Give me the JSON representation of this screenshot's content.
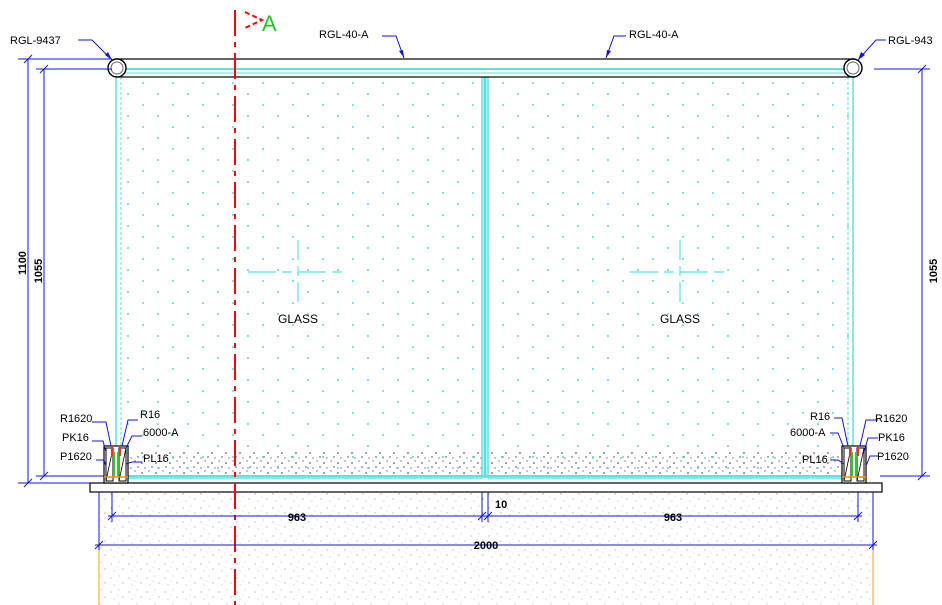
{
  "section_marker": {
    "letter": "A",
    "color_arrow": "#ff0000",
    "color_letter": "#1ec81e"
  },
  "callouts": {
    "top_left_end": "RGL-9437",
    "top_rail_left": "RGL-40-A",
    "top_rail_right": "RGL-40-A",
    "top_right_end": "RGL-943"
  },
  "panels": [
    {
      "label": "GLASS"
    },
    {
      "label": "GLASS"
    }
  ],
  "base_left": {
    "r1620": "R1620",
    "pk16": "PK16",
    "p1620": "P1620",
    "r16": "R16",
    "profile": "6000-A",
    "pl16": "PL16"
  },
  "base_right": {
    "r16": "R16",
    "profile": "6000-A",
    "pl16": "PL16",
    "r1620": "R1620",
    "pk16": "PK16",
    "p1620": "P1620"
  },
  "dimensions": {
    "overall_height": "1100",
    "glass_height_left": "1055",
    "glass_height_right": "1055",
    "gap": "10",
    "panel_width_left": "963",
    "panel_width_right": "963",
    "total_width": "2000"
  },
  "colors": {
    "glass_outline": "#5ee0e0",
    "glass_dots": "#30c8c8",
    "dimension": "#1414d2",
    "centerline": "#e01010",
    "concrete_dots": "#9a9a9a",
    "foot_lines": "#f0b040"
  }
}
